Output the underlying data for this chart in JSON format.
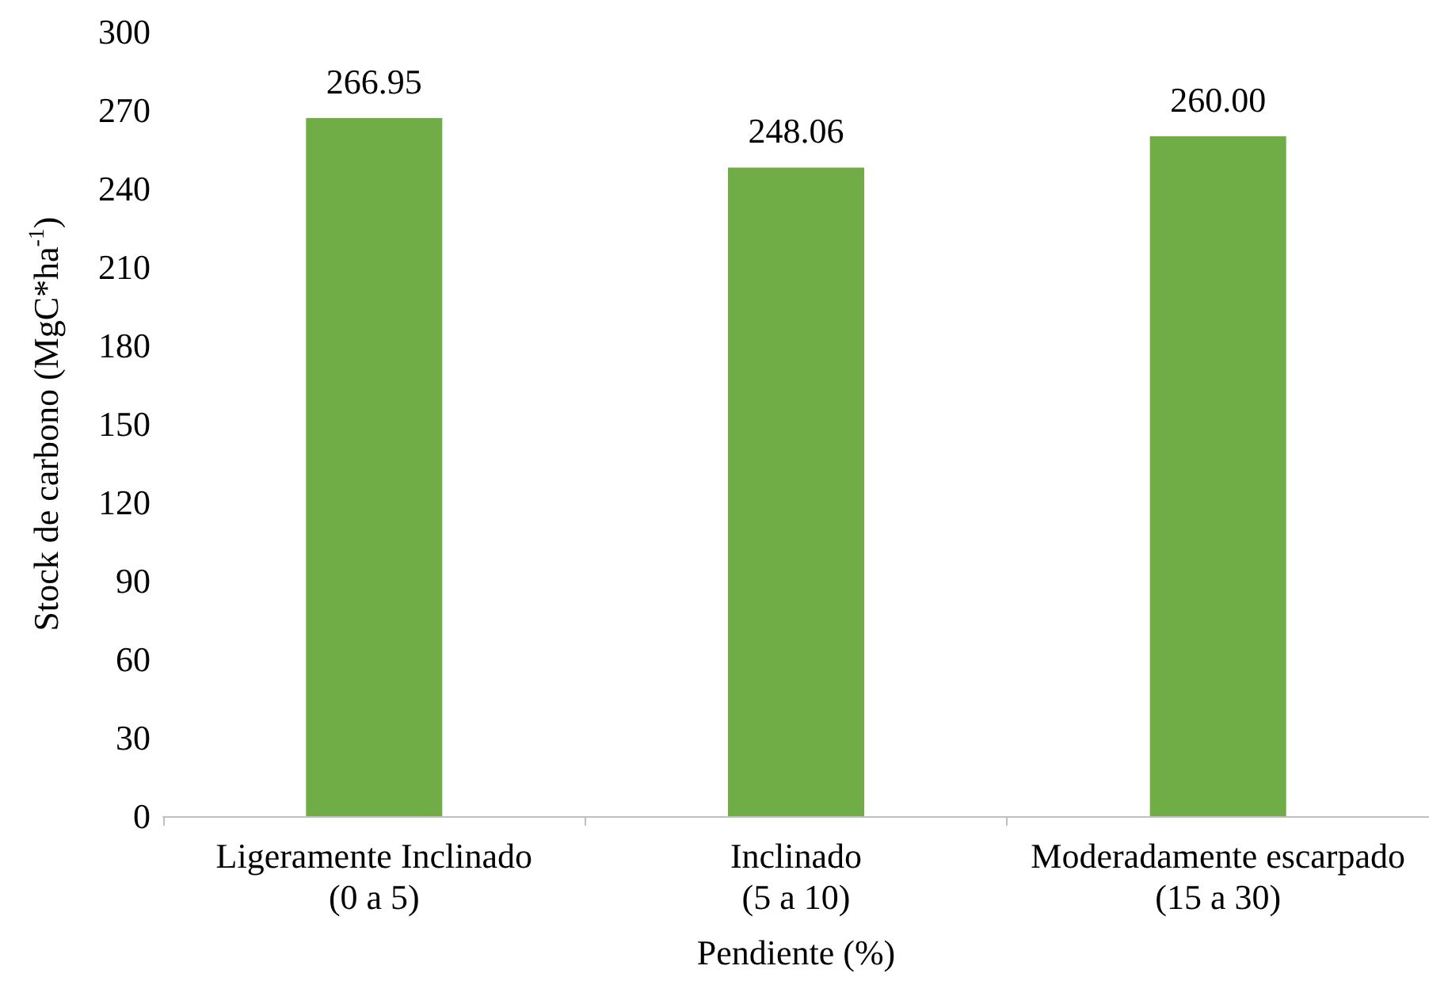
{
  "chart_data": {
    "type": "bar",
    "xlabel": "Pendiente (%)",
    "ylabel": "Stock de carbono (MgC*ha$^{-1}$)",
    "categories": [
      "Ligeramente Inclinado\n(0 a 5)",
      "Inclinado\n(5 a 10)",
      "Moderadamente escarpado\n(15 a 30)"
    ],
    "values": [
      266.95,
      248.06,
      260.0
    ],
    "color": "#70ad47",
    "value_labels": [
      "266.95",
      "248.06",
      "260.00"
    ],
    "ylim": [
      0,
      300
    ],
    "yticks": [
      0,
      30,
      60,
      90,
      120,
      150,
      180,
      210,
      240,
      270,
      300
    ],
    "grid": false
  }
}
